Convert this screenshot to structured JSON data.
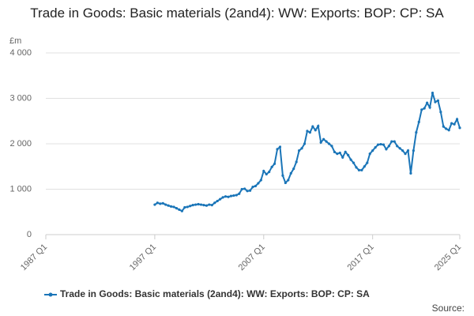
{
  "chart_data": {
    "type": "line",
    "title": "Trade in Goods: Basic materials (2and4): WW: Exports: BOP: CP: SA",
    "y_label": "£m",
    "source": "Source:",
    "categories": [
      "1987 Q1",
      null,
      null,
      null,
      null,
      null,
      null,
      null,
      null,
      null,
      null,
      null,
      null,
      null,
      null,
      null,
      null,
      null,
      null,
      null,
      null,
      null,
      null,
      null,
      null,
      null,
      null,
      null,
      null,
      null,
      null,
      null,
      null,
      null,
      null,
      null,
      null,
      null,
      null,
      null,
      "1997 Q1",
      null,
      null,
      null,
      null,
      null,
      null,
      null,
      null,
      null,
      null,
      null,
      null,
      null,
      null,
      null,
      null,
      null,
      null,
      null,
      null,
      null,
      null,
      null,
      null,
      null,
      null,
      null,
      null,
      null,
      null,
      null,
      null,
      null,
      null,
      null,
      null,
      null,
      null,
      null,
      "2007 Q1",
      null,
      null,
      null,
      null,
      null,
      null,
      null,
      null,
      null,
      null,
      null,
      null,
      null,
      null,
      null,
      null,
      null,
      null,
      null,
      null,
      null,
      null,
      null,
      null,
      null,
      null,
      null,
      null,
      null,
      null,
      null,
      null,
      null,
      null,
      null,
      null,
      null,
      null,
      null,
      "2017 Q1",
      null,
      null,
      null,
      null,
      null,
      null,
      null,
      null,
      null,
      null,
      null,
      null,
      null,
      null,
      null,
      null,
      null,
      null,
      null,
      null,
      null,
      null,
      null,
      null,
      null,
      null,
      null,
      null,
      null,
      null,
      null,
      "2025 Q1"
    ],
    "series": [
      {
        "name": "Trade in Goods: Basic materials (2and4): WW: Exports: BOP: CP: SA",
        "color": "#1a75b8",
        "values": [
          null,
          null,
          null,
          null,
          null,
          null,
          null,
          null,
          null,
          null,
          null,
          null,
          null,
          null,
          null,
          null,
          null,
          null,
          null,
          null,
          null,
          null,
          null,
          null,
          null,
          null,
          null,
          null,
          null,
          null,
          null,
          null,
          null,
          null,
          null,
          null,
          null,
          null,
          null,
          null,
          660,
          700,
          680,
          690,
          660,
          640,
          620,
          610,
          580,
          550,
          520,
          600,
          610,
          630,
          650,
          660,
          670,
          660,
          650,
          640,
          660,
          650,
          700,
          740,
          780,
          820,
          840,
          830,
          850,
          860,
          870,
          900,
          1000,
          1010,
          960,
          970,
          1050,
          1070,
          1130,
          1200,
          1400,
          1330,
          1380,
          1490,
          1560,
          1880,
          1930,
          1300,
          1140,
          1200,
          1350,
          1450,
          1600,
          1850,
          1900,
          2000,
          2280,
          2250,
          2380,
          2300,
          2390,
          2030,
          2100,
          2050,
          2000,
          1950,
          1820,
          1780,
          1800,
          1700,
          1820,
          1750,
          1650,
          1580,
          1480,
          1420,
          1420,
          1500,
          1580,
          1780,
          1850,
          1920,
          1980,
          1990,
          1980,
          1880,
          1950,
          2050,
          2050,
          1950,
          1900,
          1850,
          1780,
          1850,
          1350,
          1850,
          2250,
          2480,
          2750,
          2780,
          2900,
          2800,
          3120,
          2920,
          2950,
          2700,
          2380,
          2330,
          2300,
          2450,
          2430,
          2540,
          2350
        ]
      }
    ],
    "ylim": [
      0,
      4000
    ],
    "yticks": [
      0,
      {
        "value": 1000,
        "label": "1 000"
      },
      {
        "value": 2000,
        "label": "2 000"
      },
      {
        "value": 3000,
        "label": "3 000"
      },
      {
        "value": 4000,
        "label": "4 000"
      }
    ],
    "grid": true,
    "legend": "bottom"
  }
}
